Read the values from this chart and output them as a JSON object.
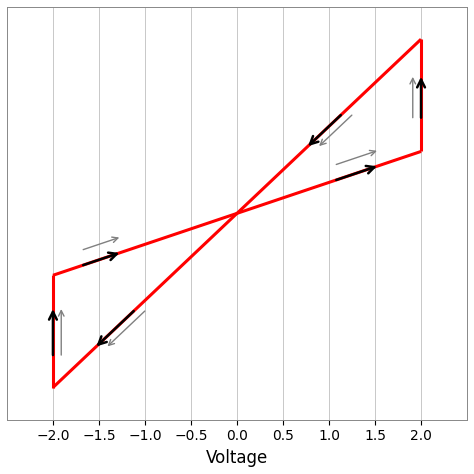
{
  "title": "",
  "xlabel": "Voltage",
  "xlim": [
    -2.5,
    2.5
  ],
  "ylim": [
    -1.6,
    1.6
  ],
  "xticks": [
    -2.0,
    -1.5,
    -1.0,
    -0.5,
    0.0,
    0.5,
    1.0,
    1.5,
    2.0
  ],
  "yticks": [],
  "curve_color": "#ff0000",
  "curve_linewidth": 2.2,
  "background_color": "#ffffff",
  "grid_color": "#c8c8c8",
  "p1": [
    -2,
    -1.35
  ],
  "p2": [
    -2,
    -0.48
  ],
  "p3": [
    0,
    0
  ],
  "p4": [
    2,
    0.48
  ],
  "p5": [
    2,
    1.35
  ]
}
